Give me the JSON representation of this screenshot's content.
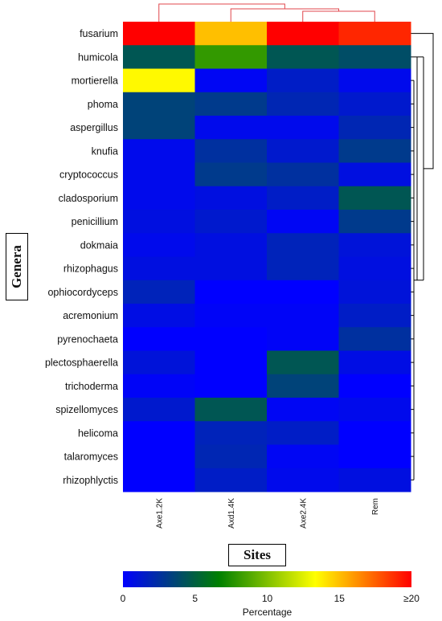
{
  "chart_data": {
    "type": "heatmap",
    "title": "",
    "rows": [
      "fusarium",
      "humicola",
      "mortierella",
      "phoma",
      "aspergillus",
      "knufia",
      "cryptococcus",
      "cladosporium",
      "penicillium",
      "dokmaia",
      "rhizophagus",
      "ophiocordyceps",
      "acremonium",
      "pyrenochaeta",
      "plectosphaerella",
      "trichoderma",
      "spizellomyces",
      "helicoma",
      "talaromyces",
      "rhizophlyctis"
    ],
    "columns": [
      "Axe1.2K",
      "Axd1.4K",
      "Axe2.4K",
      "Rem"
    ],
    "values": [
      [
        20,
        15,
        20,
        19
      ],
      [
        4.5,
        8,
        4.5,
        4
      ],
      [
        13.5,
        0.3,
        1.5,
        0.5
      ],
      [
        3.5,
        3,
        2,
        1.3
      ],
      [
        3.5,
        0.5,
        0.5,
        2
      ],
      [
        0.5,
        2.5,
        1.3,
        3
      ],
      [
        0.5,
        3,
        2.5,
        0.8
      ],
      [
        0.5,
        0.8,
        1.5,
        4.5
      ],
      [
        0.8,
        1.3,
        0.3,
        3
      ],
      [
        0.5,
        0.8,
        1.8,
        1
      ],
      [
        0.8,
        0.8,
        1.8,
        0.8
      ],
      [
        1.8,
        0,
        0,
        1
      ],
      [
        0.7,
        0.2,
        0.2,
        1.5
      ],
      [
        0,
        0,
        0.2,
        2.5
      ],
      [
        1,
        0,
        4.5,
        0.7
      ],
      [
        0.2,
        0,
        3.5,
        0
      ],
      [
        1.3,
        4.5,
        0.3,
        0.5
      ],
      [
        0,
        1.8,
        1.5,
        0
      ],
      [
        0,
        2,
        0.3,
        0
      ],
      [
        0,
        1.5,
        0.5,
        0.8
      ]
    ],
    "zlim": [
      0,
      20
    ],
    "colorscale": [
      "#0000ff",
      "#008000",
      "#ffff00",
      "#ff0000"
    ],
    "xlabel": "Sites",
    "ylabel": "Genera",
    "colorbar": {
      "label": "Percentage",
      "ticks": [
        "0",
        "5",
        "10",
        "15",
        "≥20"
      ],
      "tick_values": [
        0,
        5,
        10,
        15,
        20
      ]
    },
    "legend": "bottom",
    "dendrograms": {
      "columns": true,
      "rows": true,
      "column_color": "#e0474c",
      "row_color": "#000000"
    }
  }
}
